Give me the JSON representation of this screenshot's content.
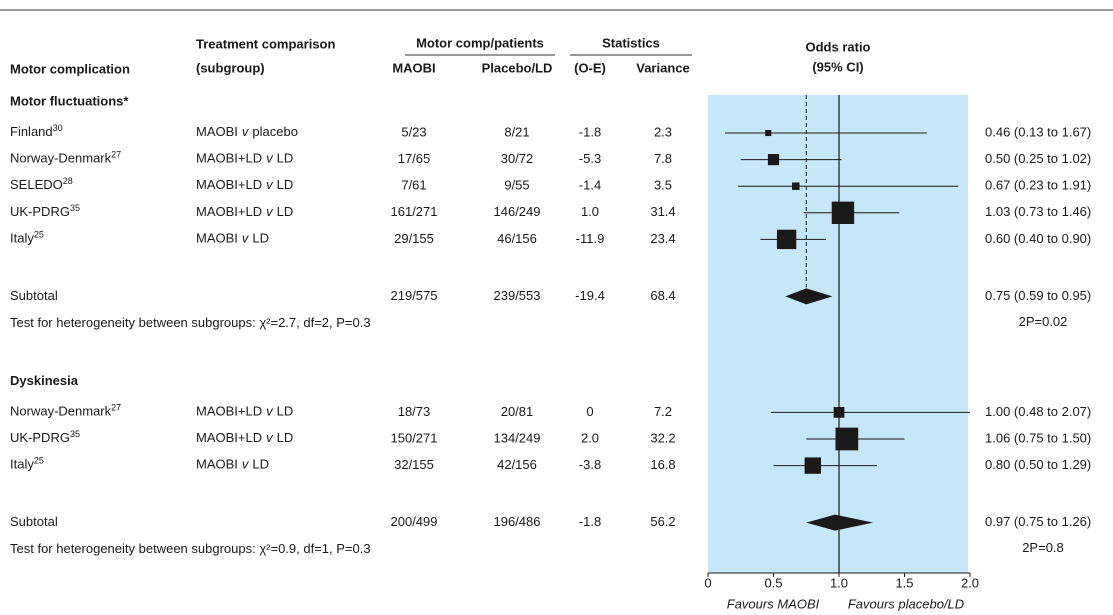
{
  "chart_data": {
    "type": "forest",
    "headers": {
      "complication": "Motor complication",
      "comparison": [
        "Treatment comparison",
        "(subgroup)"
      ],
      "motor": "Motor comp/patients",
      "maobi": "MAOBI",
      "placebo": "Placebo/LD",
      "statistics": "Statistics",
      "oe": "(O-E)",
      "variance": "Variance",
      "or": [
        "Odds ratio",
        "(95% CI)"
      ]
    },
    "groups": [
      {
        "title": "Motor fluctuations*",
        "show_pooled_line": true,
        "rows": [
          {
            "study": "Finland",
            "ref": "30",
            "comparison": [
              "MAOBI",
              "v",
              "placebo"
            ],
            "maobi": "5/23",
            "placebo": "8/21",
            "o_e": "-1.8",
            "variance": 2.3,
            "or": 0.46,
            "lo": 0.13,
            "hi": 1.67,
            "ci_label": "0.46 (0.13 to 1.67)"
          },
          {
            "study": "Norway-Denmark",
            "ref": "27",
            "comparison": [
              "MAOBI+LD",
              "v",
              "LD"
            ],
            "maobi": "17/65",
            "placebo": "30/72",
            "o_e": "-5.3",
            "variance": 7.8,
            "or": 0.5,
            "lo": 0.25,
            "hi": 1.02,
            "ci_label": "0.50 (0.25 to 1.02)"
          },
          {
            "study": "SELEDO",
            "ref": "28",
            "comparison": [
              "MAOBI+LD",
              "v",
              "LD"
            ],
            "maobi": "7/61",
            "placebo": "9/55",
            "o_e": "-1.4",
            "variance": 3.5,
            "or": 0.67,
            "lo": 0.23,
            "hi": 1.91,
            "ci_label": "0.67 (0.23 to 1.91)"
          },
          {
            "study": "UK-PDRG",
            "ref": "35",
            "comparison": [
              "MAOBI+LD",
              "v",
              "LD"
            ],
            "maobi": "161/271",
            "placebo": "146/249",
            "o_e": "1.0",
            "variance": 31.4,
            "or": 1.03,
            "lo": 0.73,
            "hi": 1.46,
            "ci_label": "1.03 (0.73 to 1.46)"
          },
          {
            "study": "Italy",
            "ref": "25",
            "comparison": [
              "MAOBI",
              "v",
              "LD"
            ],
            "maobi": "29/155",
            "placebo": "46/156",
            "o_e": "-11.9",
            "variance": 23.4,
            "or": 0.6,
            "lo": 0.4,
            "hi": 0.9,
            "ci_label": "0.60 (0.40 to 0.90)"
          }
        ],
        "subtotal": {
          "label": "Subtotal",
          "maobi": "219/575",
          "placebo": "239/553",
          "o_e": "-19.4",
          "variance": 68.4,
          "or": 0.75,
          "lo": 0.59,
          "hi": 0.95,
          "ci_label": "0.75 (0.59 to 0.95)"
        },
        "heterogeneity": "Test for heterogeneity between subgroups: χ²=2.7, df=2, P=0.3",
        "p_label": "2P=0.02"
      },
      {
        "title": "Dyskinesia",
        "show_pooled_line": false,
        "rows": [
          {
            "study": "Norway-Denmark",
            "ref": "27",
            "comparison": [
              "MAOBI+LD",
              "v",
              "LD"
            ],
            "maobi": "18/73",
            "placebo": "20/81",
            "o_e": "0",
            "variance": 7.2,
            "or": 1.0,
            "lo": 0.48,
            "hi": 2.07,
            "ci_label": "1.00 (0.48 to 2.07)"
          },
          {
            "study": "UK-PDRG",
            "ref": "35",
            "comparison": [
              "MAOBI+LD",
              "v",
              "LD"
            ],
            "maobi": "150/271",
            "placebo": "134/249",
            "o_e": "2.0",
            "variance": 32.2,
            "or": 1.06,
            "lo": 0.75,
            "hi": 1.5,
            "ci_label": "1.06 (0.75 to 1.50)"
          },
          {
            "study": "Italy",
            "ref": "25",
            "comparison": [
              "MAOBI",
              "v",
              "LD"
            ],
            "maobi": "32/155",
            "placebo": "42/156",
            "o_e": "-3.8",
            "variance": 16.8,
            "or": 0.8,
            "lo": 0.5,
            "hi": 1.29,
            "ci_label": "0.80 (0.50 to 1.29)"
          }
        ],
        "subtotal": {
          "label": "Subtotal",
          "maobi": "200/499",
          "placebo": "196/486",
          "o_e": "-1.8",
          "variance": 56.2,
          "or": 0.97,
          "lo": 0.75,
          "hi": 1.26,
          "ci_label": "0.97 (0.75 to 1.26)"
        },
        "heterogeneity": "Test for heterogeneity between subgroups: χ²=0.9, df=1, P=0.3",
        "p_label": "2P=0.8"
      }
    ],
    "xlim": [
      0,
      2
    ],
    "xticks": [
      0,
      0.5,
      {
        "value": 1,
        "label": "1.0"
      },
      1.5,
      {
        "value": 2,
        "label": "2.0"
      }
    ],
    "reference_line": 1,
    "x_labels": [
      "Favours MAOBI",
      "Favours placebo/LD"
    ],
    "plot_color": "#c5e7f7",
    "mark_color": "#1a1a1a"
  }
}
